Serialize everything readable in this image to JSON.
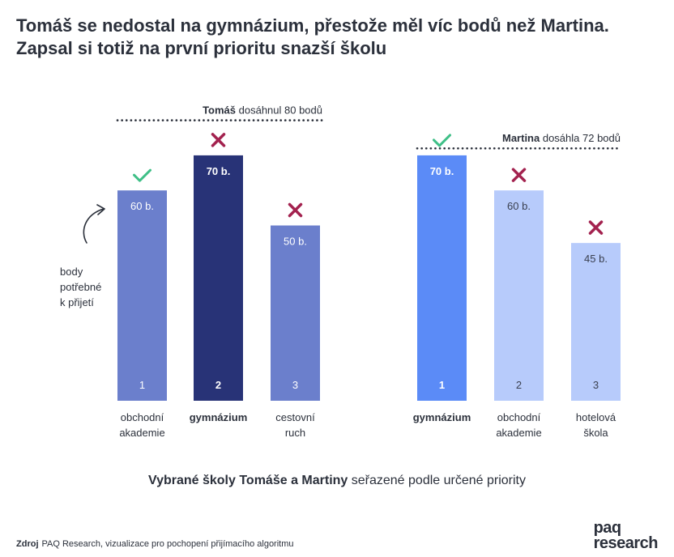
{
  "title": {
    "line1": "Tomáš se nedostal na gymnázium, přestože měl víc bodů než Martina.",
    "line2": "Zapsal si totiž na první prioritu snazší školu"
  },
  "chart_data": {
    "type": "bar",
    "ylabel": "body",
    "ylim": [
      0,
      100
    ],
    "groups": [
      {
        "student": "Tomáš",
        "score_name": "Tomáš",
        "score_text": "dosáhnul 80 bodů",
        "score": 80,
        "bars": [
          {
            "priority": "1",
            "school": [
              "obchodní",
              "akademie"
            ],
            "value": 60,
            "label": "60 b.",
            "result": "accepted",
            "color": "#6b7fcc"
          },
          {
            "priority": "2",
            "school": [
              "gymnázium"
            ],
            "value": 70,
            "label": "70 b.",
            "result": "rejected",
            "bold": true,
            "color": "#283377"
          },
          {
            "priority": "3",
            "school": [
              "cestovní",
              "ruch"
            ],
            "value": 50,
            "label": "50 b.",
            "result": "rejected",
            "color": "#6b7fcc"
          }
        ]
      },
      {
        "student": "Martina",
        "score_name": "Martina",
        "score_text": "dosáhla 72 bodů",
        "score": 72,
        "bars": [
          {
            "priority": "1",
            "school": [
              "gymnázium"
            ],
            "value": 70,
            "label": "70 b.",
            "result": "accepted",
            "bold": true,
            "color": "#5b8bf7"
          },
          {
            "priority": "2",
            "school": [
              "obchodní",
              "akademie"
            ],
            "value": 60,
            "label": "60 b.",
            "result": "rejected",
            "color": "#b7cbfb"
          },
          {
            "priority": "3",
            "school": [
              "hotelová",
              "škola"
            ],
            "value": 45,
            "label": "45 b.",
            "result": "rejected",
            "color": "#b7cbfb"
          }
        ]
      }
    ],
    "annotation": [
      "body",
      "potřebné",
      "k přijetí"
    ],
    "colors": {
      "check": "#3fbf87",
      "cross": "#a3224f",
      "text": "#2b303b"
    }
  },
  "caption": {
    "bold": "Vybrané školy Tomáše a Martiny",
    "rest": " seřazené podle určené priority"
  },
  "source": {
    "label": "Zdroj",
    "text": "PAQ Research, vizualizace pro pochopení přijímacího algoritmu"
  },
  "logo": {
    "line1": "paq",
    "line2": "research"
  }
}
